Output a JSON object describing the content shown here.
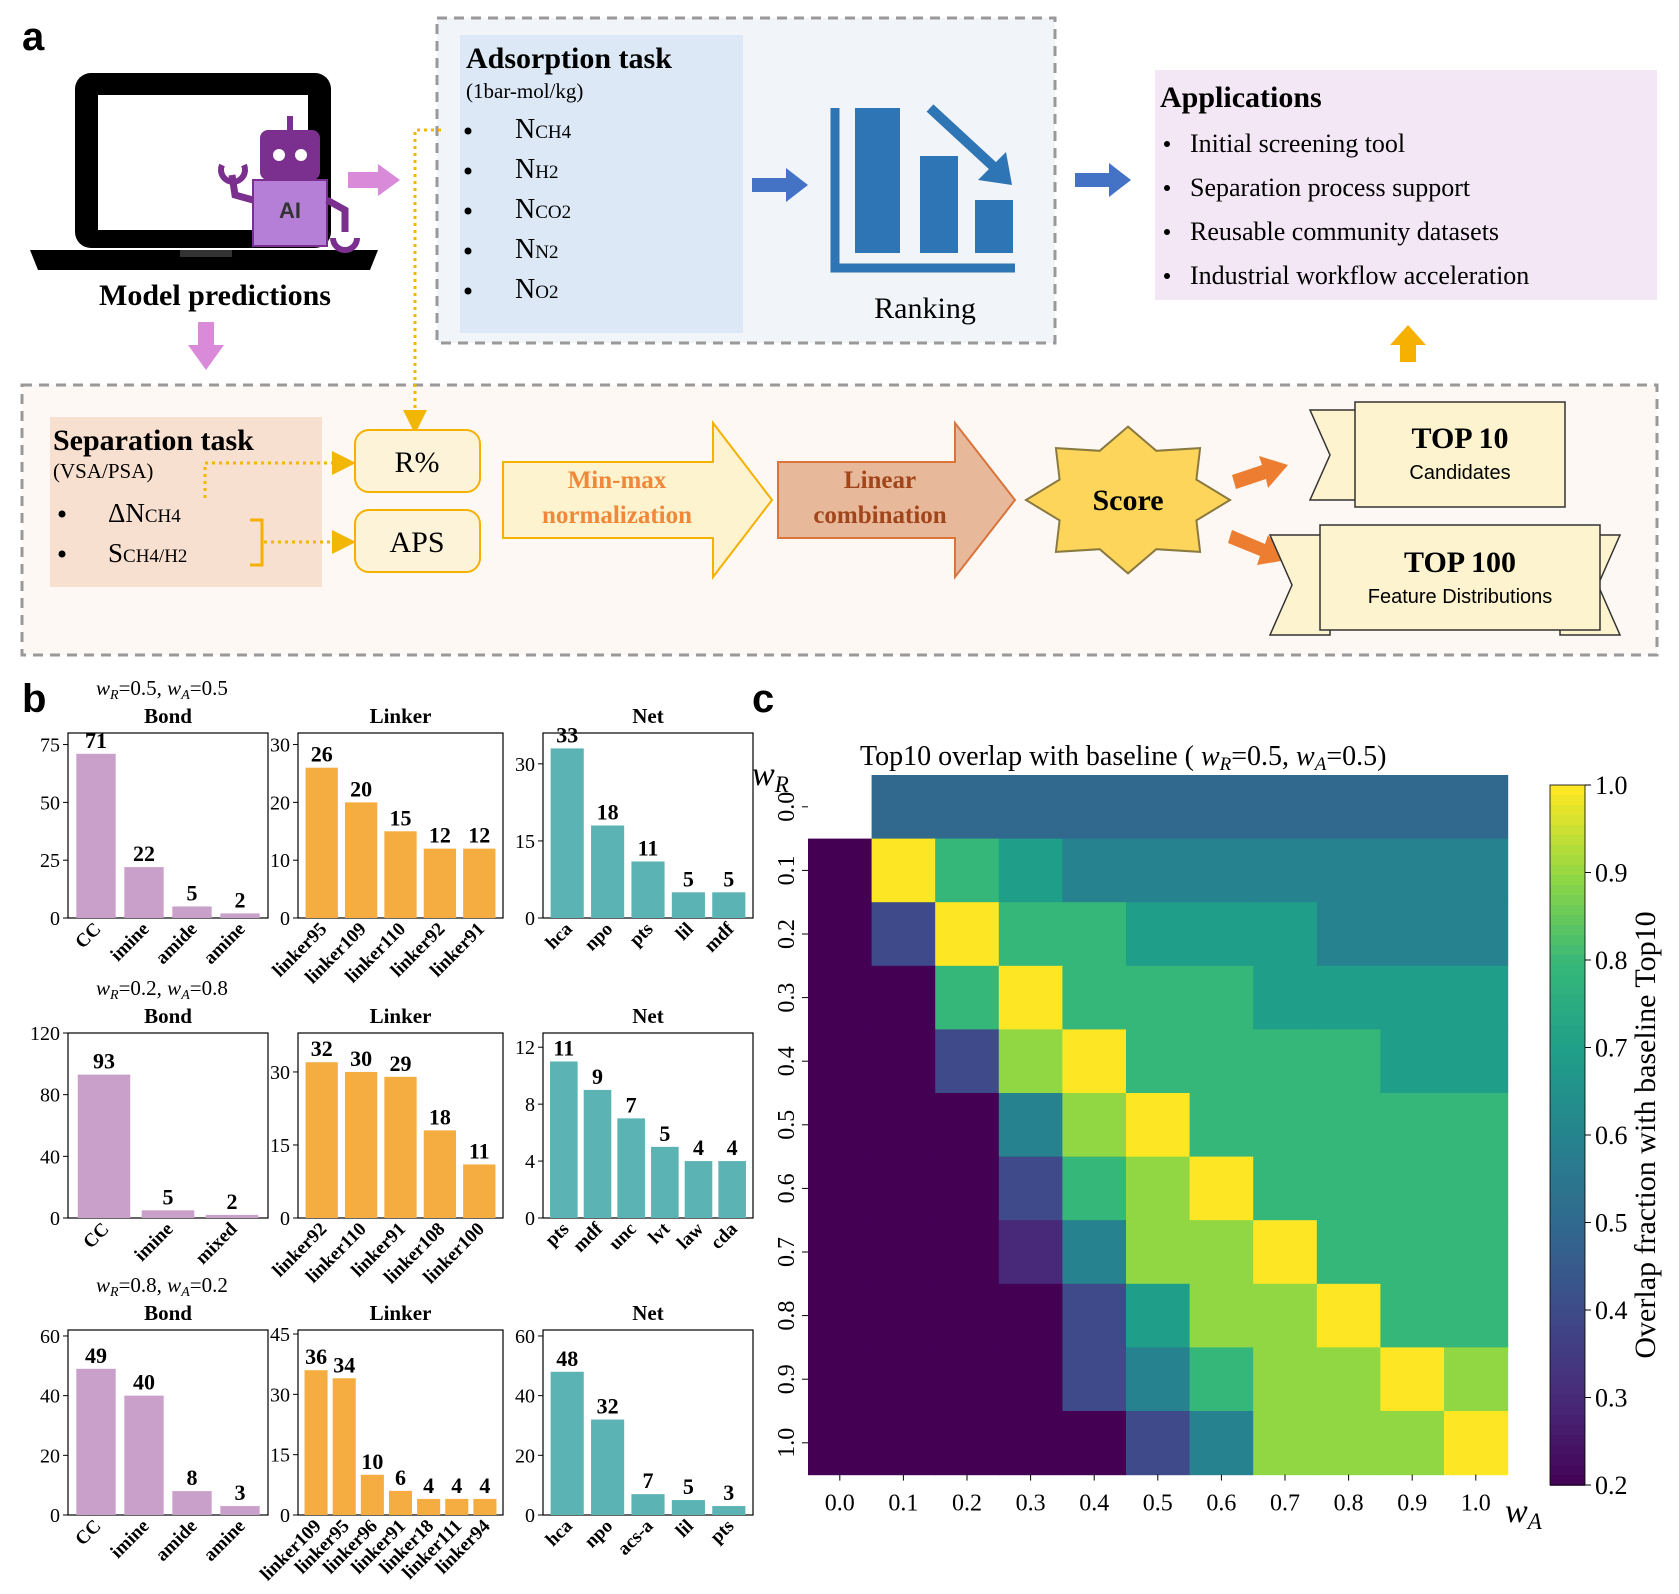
{
  "panel_labels": {
    "a": "a",
    "b": "b",
    "c": "c"
  },
  "colors": {
    "bond": "#c9a0c9",
    "linker": "#f5ad42",
    "net": "#5cb3b3",
    "arrow_blue": "#4472c4",
    "arrow_purple": "#d98ad9",
    "arrow_orange": "#ed7d31",
    "dotted_yellow": "#f2b705"
  },
  "panel_a": {
    "model_label": "Model predictions",
    "ai_chip_label": "AI",
    "adsorption": {
      "title": "Adsorption task",
      "subtitle": "(1bar-mol/kg)",
      "items": [
        {
          "main": "N",
          "sub": "CH4"
        },
        {
          "main": "N",
          "sub": "H2"
        },
        {
          "main": "N",
          "sub": "CO2"
        },
        {
          "main": "N",
          "sub": "N2"
        },
        {
          "main": "N",
          "sub": "O2"
        }
      ]
    },
    "ranking_label": "Ranking",
    "applications": {
      "title": "Applications",
      "items": [
        "Initial screening tool",
        "Separation process support",
        "Reusable community datasets",
        "Industrial workflow acceleration"
      ]
    },
    "separation": {
      "title": "Separation task",
      "subtitle": "(VSA/PSA)",
      "items": [
        {
          "main": "ΔN",
          "sub": "CH4"
        },
        {
          "main": "S",
          "sub": "CH4/H2"
        }
      ]
    },
    "r_box": "R%",
    "aps_box": "APS",
    "minmax": [
      "Min-max",
      "normalization"
    ],
    "linear": [
      "Linear",
      "combination"
    ],
    "score": "Score",
    "top10": {
      "title": "TOP 10",
      "subtitle": "Candidates"
    },
    "top100": {
      "title": "TOP 100",
      "subtitle": "Feature Distributions"
    }
  },
  "panel_b": {
    "rows": [
      {
        "weights": {
          "wr": "0.5",
          "wa": "0.5"
        },
        "charts": [
          {
            "title": "Bond",
            "kind": "bond",
            "categories": [
              "CC",
              "imine",
              "amide",
              "amine"
            ],
            "values": [
              71,
              22,
              5,
              2
            ],
            "ylim": [
              0,
              80
            ],
            "yticks": [
              0,
              25,
              50,
              75
            ]
          },
          {
            "title": "Linker",
            "kind": "linker",
            "categories": [
              "linker95",
              "linker109",
              "linker110",
              "linker92",
              "linker91"
            ],
            "values": [
              26,
              20,
              15,
              12,
              12
            ],
            "ylim": [
              0,
              32
            ],
            "yticks": [
              0,
              10,
              20,
              30
            ]
          },
          {
            "title": "Net",
            "kind": "net",
            "categories": [
              "hca",
              "npo",
              "pts",
              "lil",
              "mdf"
            ],
            "values": [
              33,
              18,
              11,
              5,
              5
            ],
            "ylim": [
              0,
              36
            ],
            "yticks": [
              0,
              15,
              30
            ]
          }
        ]
      },
      {
        "weights": {
          "wr": "0.2",
          "wa": "0.8"
        },
        "charts": [
          {
            "title": "Bond",
            "kind": "bond",
            "categories": [
              "CC",
              "imine",
              "mixed"
            ],
            "values": [
              93,
              5,
              2
            ],
            "ylim": [
              0,
              120
            ],
            "yticks": [
              0,
              40,
              80,
              120
            ]
          },
          {
            "title": "Linker",
            "kind": "linker",
            "categories": [
              "linker92",
              "linker110",
              "linker91",
              "linker108",
              "linker100"
            ],
            "values": [
              32,
              30,
              29,
              18,
              11
            ],
            "ylim": [
              0,
              38
            ],
            "yticks": [
              0,
              15,
              30
            ]
          },
          {
            "title": "Net",
            "kind": "net",
            "categories": [
              "pts",
              "mdf",
              "unc",
              "lvt",
              "law",
              "cda"
            ],
            "values": [
              11,
              9,
              7,
              5,
              4,
              4
            ],
            "ylim": [
              0,
              13
            ],
            "yticks": [
              0,
              4,
              8,
              12
            ]
          }
        ]
      },
      {
        "weights": {
          "wr": "0.8",
          "wa": "0.2"
        },
        "charts": [
          {
            "title": "Bond",
            "kind": "bond",
            "categories": [
              "CC",
              "imine",
              "amide",
              "amine"
            ],
            "values": [
              49,
              40,
              8,
              3
            ],
            "ylim": [
              0,
              62
            ],
            "yticks": [
              0,
              20,
              40,
              60
            ]
          },
          {
            "title": "Linker",
            "kind": "linker",
            "categories": [
              "linker109",
              "linker95",
              "linker96",
              "linker91",
              "linker18",
              "linker111",
              "linker94"
            ],
            "values": [
              36,
              34,
              10,
              6,
              4,
              4,
              4
            ],
            "ylim": [
              0,
              46
            ],
            "yticks": [
              0,
              15,
              30,
              45
            ]
          },
          {
            "title": "Net",
            "kind": "net",
            "categories": [
              "hca",
              "npo",
              "acs-a",
              "lil",
              "pts"
            ],
            "values": [
              48,
              32,
              7,
              5,
              3
            ],
            "ylim": [
              0,
              62
            ],
            "yticks": [
              0,
              20,
              40,
              60
            ]
          }
        ]
      }
    ]
  },
  "chart_data": {
    "type": "heatmap",
    "title": "Top10 overlap with baseline ( wR=0.5, wA=0.5)",
    "xlabel": "wA",
    "ylabel": "wR",
    "x": [
      "0.0",
      "0.1",
      "0.2",
      "0.3",
      "0.4",
      "0.5",
      "0.6",
      "0.7",
      "0.8",
      "0.9",
      "1.0"
    ],
    "y": [
      "0.0",
      "0.1",
      "0.2",
      "0.3",
      "0.4",
      "0.5",
      "0.6",
      "0.7",
      "0.8",
      "0.9",
      "1.0"
    ],
    "values": [
      [
        null,
        0.5,
        0.5,
        0.5,
        0.5,
        0.5,
        0.5,
        0.5,
        0.5,
        0.5,
        0.5
      ],
      [
        0.2,
        1.0,
        0.8,
        0.7,
        0.6,
        0.6,
        0.6,
        0.6,
        0.6,
        0.6,
        0.6
      ],
      [
        0.2,
        0.4,
        1.0,
        0.8,
        0.8,
        0.7,
        0.7,
        0.7,
        0.6,
        0.6,
        0.6
      ],
      [
        0.2,
        0.2,
        0.8,
        1.0,
        0.8,
        0.8,
        0.8,
        0.7,
        0.7,
        0.7,
        0.7
      ],
      [
        0.2,
        0.2,
        0.4,
        0.9,
        1.0,
        0.8,
        0.8,
        0.8,
        0.8,
        0.7,
        0.7
      ],
      [
        0.2,
        0.2,
        0.2,
        0.6,
        0.9,
        1.0,
        0.8,
        0.8,
        0.8,
        0.8,
        0.8
      ],
      [
        0.2,
        0.2,
        0.2,
        0.4,
        0.8,
        0.9,
        1.0,
        0.8,
        0.8,
        0.8,
        0.8
      ],
      [
        0.2,
        0.2,
        0.2,
        0.3,
        0.6,
        0.9,
        0.9,
        1.0,
        0.8,
        0.8,
        0.8
      ],
      [
        0.2,
        0.2,
        0.2,
        0.2,
        0.4,
        0.7,
        0.9,
        0.9,
        1.0,
        0.8,
        0.8
      ],
      [
        0.2,
        0.2,
        0.2,
        0.2,
        0.4,
        0.6,
        0.8,
        0.9,
        0.9,
        1.0,
        0.9
      ],
      [
        0.2,
        0.2,
        0.2,
        0.2,
        0.2,
        0.4,
        0.6,
        0.9,
        0.9,
        0.9,
        1.0
      ]
    ],
    "colorbar": {
      "label": "Overlap fraction with baseline Top10",
      "range": [
        0.2,
        1.0
      ],
      "ticks": [
        "0.2",
        "0.3",
        "0.4",
        "0.5",
        "0.6",
        "0.7",
        "0.8",
        "0.9",
        "1.0"
      ]
    }
  }
}
